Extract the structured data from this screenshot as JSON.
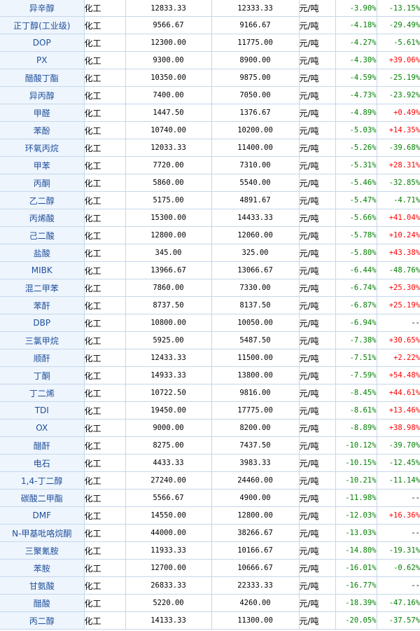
{
  "colors": {
    "positive": "#ff0000",
    "negative": "#008000",
    "name_text": "#1f4e9a",
    "name_bg": "#eef5fd",
    "grid": "#c6d7ea"
  },
  "rows": [
    {
      "name": "异辛醇",
      "category": "化工",
      "price_a": "12833.33",
      "price_b": "12333.33",
      "unit": "元/吨",
      "change": "-3.90%",
      "ytd": "-13.15%"
    },
    {
      "name": "正丁醇(工业级)",
      "category": "化工",
      "price_a": "9566.67",
      "price_b": "9166.67",
      "unit": "元/吨",
      "change": "-4.18%",
      "ytd": "-29.49%"
    },
    {
      "name": "DOP",
      "category": "化工",
      "price_a": "12300.00",
      "price_b": "11775.00",
      "unit": "元/吨",
      "change": "-4.27%",
      "ytd": "-5.61%"
    },
    {
      "name": "PX",
      "category": "化工",
      "price_a": "9300.00",
      "price_b": "8900.00",
      "unit": "元/吨",
      "change": "-4.30%",
      "ytd": "+39.06%"
    },
    {
      "name": "醋酸丁酯",
      "category": "化工",
      "price_a": "10350.00",
      "price_b": "9875.00",
      "unit": "元/吨",
      "change": "-4.59%",
      "ytd": "-25.19%"
    },
    {
      "name": "异丙醇",
      "category": "化工",
      "price_a": "7400.00",
      "price_b": "7050.00",
      "unit": "元/吨",
      "change": "-4.73%",
      "ytd": "-23.92%"
    },
    {
      "name": "甲醛",
      "category": "化工",
      "price_a": "1447.50",
      "price_b": "1376.67",
      "unit": "元/吨",
      "change": "-4.89%",
      "ytd": "+0.49%"
    },
    {
      "name": "苯酚",
      "category": "化工",
      "price_a": "10740.00",
      "price_b": "10200.00",
      "unit": "元/吨",
      "change": "-5.03%",
      "ytd": "+14.35%"
    },
    {
      "name": "环氧丙烷",
      "category": "化工",
      "price_a": "12033.33",
      "price_b": "11400.00",
      "unit": "元/吨",
      "change": "-5.26%",
      "ytd": "-39.68%"
    },
    {
      "name": "甲苯",
      "category": "化工",
      "price_a": "7720.00",
      "price_b": "7310.00",
      "unit": "元/吨",
      "change": "-5.31%",
      "ytd": "+28.31%"
    },
    {
      "name": "丙酮",
      "category": "化工",
      "price_a": "5860.00",
      "price_b": "5540.00",
      "unit": "元/吨",
      "change": "-5.46%",
      "ytd": "-32.85%"
    },
    {
      "name": "乙二醇",
      "category": "化工",
      "price_a": "5175.00",
      "price_b": "4891.67",
      "unit": "元/吨",
      "change": "-5.47%",
      "ytd": "-4.71%"
    },
    {
      "name": "丙烯酸",
      "category": "化工",
      "price_a": "15300.00",
      "price_b": "14433.33",
      "unit": "元/吨",
      "change": "-5.66%",
      "ytd": "+41.04%"
    },
    {
      "name": "己二酸",
      "category": "化工",
      "price_a": "12800.00",
      "price_b": "12060.00",
      "unit": "元/吨",
      "change": "-5.78%",
      "ytd": "+10.24%"
    },
    {
      "name": "盐酸",
      "category": "化工",
      "price_a": "345.00",
      "price_b": "325.00",
      "unit": "元/吨",
      "change": "-5.80%",
      "ytd": "+43.38%"
    },
    {
      "name": "MIBK",
      "category": "化工",
      "price_a": "13966.67",
      "price_b": "13066.67",
      "unit": "元/吨",
      "change": "-6.44%",
      "ytd": "-48.76%"
    },
    {
      "name": "混二甲苯",
      "category": "化工",
      "price_a": "7860.00",
      "price_b": "7330.00",
      "unit": "元/吨",
      "change": "-6.74%",
      "ytd": "+25.30%"
    },
    {
      "name": "苯酐",
      "category": "化工",
      "price_a": "8737.50",
      "price_b": "8137.50",
      "unit": "元/吨",
      "change": "-6.87%",
      "ytd": "+25.19%"
    },
    {
      "name": "DBP",
      "category": "化工",
      "price_a": "10800.00",
      "price_b": "10050.00",
      "unit": "元/吨",
      "change": "-6.94%",
      "ytd": "--"
    },
    {
      "name": "三氯甲烷",
      "category": "化工",
      "price_a": "5925.00",
      "price_b": "5487.50",
      "unit": "元/吨",
      "change": "-7.38%",
      "ytd": "+30.65%"
    },
    {
      "name": "顺酐",
      "category": "化工",
      "price_a": "12433.33",
      "price_b": "11500.00",
      "unit": "元/吨",
      "change": "-7.51%",
      "ytd": "+2.22%"
    },
    {
      "name": "丁酮",
      "category": "化工",
      "price_a": "14933.33",
      "price_b": "13800.00",
      "unit": "元/吨",
      "change": "-7.59%",
      "ytd": "+54.48%"
    },
    {
      "name": "丁二烯",
      "category": "化工",
      "price_a": "10722.50",
      "price_b": "9816.00",
      "unit": "元/吨",
      "change": "-8.45%",
      "ytd": "+44.61%"
    },
    {
      "name": "TDI",
      "category": "化工",
      "price_a": "19450.00",
      "price_b": "17775.00",
      "unit": "元/吨",
      "change": "-8.61%",
      "ytd": "+13.46%"
    },
    {
      "name": "OX",
      "category": "化工",
      "price_a": "9000.00",
      "price_b": "8200.00",
      "unit": "元/吨",
      "change": "-8.89%",
      "ytd": "+38.98%"
    },
    {
      "name": "醋酐",
      "category": "化工",
      "price_a": "8275.00",
      "price_b": "7437.50",
      "unit": "元/吨",
      "change": "-10.12%",
      "ytd": "-39.70%"
    },
    {
      "name": "电石",
      "category": "化工",
      "price_a": "4433.33",
      "price_b": "3983.33",
      "unit": "元/吨",
      "change": "-10.15%",
      "ytd": "-12.45%"
    },
    {
      "name": "1,4-丁二醇",
      "category": "化工",
      "price_a": "27240.00",
      "price_b": "24460.00",
      "unit": "元/吨",
      "change": "-10.21%",
      "ytd": "-11.14%"
    },
    {
      "name": "碳酸二甲酯",
      "category": "化工",
      "price_a": "5566.67",
      "price_b": "4900.00",
      "unit": "元/吨",
      "change": "-11.98%",
      "ytd": "--"
    },
    {
      "name": "DMF",
      "category": "化工",
      "price_a": "14550.00",
      "price_b": "12800.00",
      "unit": "元/吨",
      "change": "-12.03%",
      "ytd": "+16.36%"
    },
    {
      "name": "N-甲基吡咯烷酮",
      "category": "化工",
      "price_a": "44000.00",
      "price_b": "38266.67",
      "unit": "元/吨",
      "change": "-13.03%",
      "ytd": "--"
    },
    {
      "name": "三聚氰胺",
      "category": "化工",
      "price_a": "11933.33",
      "price_b": "10166.67",
      "unit": "元/吨",
      "change": "-14.80%",
      "ytd": "-19.31%"
    },
    {
      "name": "苯胺",
      "category": "化工",
      "price_a": "12700.00",
      "price_b": "10666.67",
      "unit": "元/吨",
      "change": "-16.01%",
      "ytd": "-0.62%"
    },
    {
      "name": "甘氨酸",
      "category": "化工",
      "price_a": "26833.33",
      "price_b": "22333.33",
      "unit": "元/吨",
      "change": "-16.77%",
      "ytd": "--"
    },
    {
      "name": "醋酸",
      "category": "化工",
      "price_a": "5220.00",
      "price_b": "4260.00",
      "unit": "元/吨",
      "change": "-18.39%",
      "ytd": "-47.16%"
    },
    {
      "name": "丙二醇",
      "category": "化工",
      "price_a": "14133.33",
      "price_b": "11300.00",
      "unit": "元/吨",
      "change": "-20.05%",
      "ytd": "-37.57%"
    }
  ]
}
